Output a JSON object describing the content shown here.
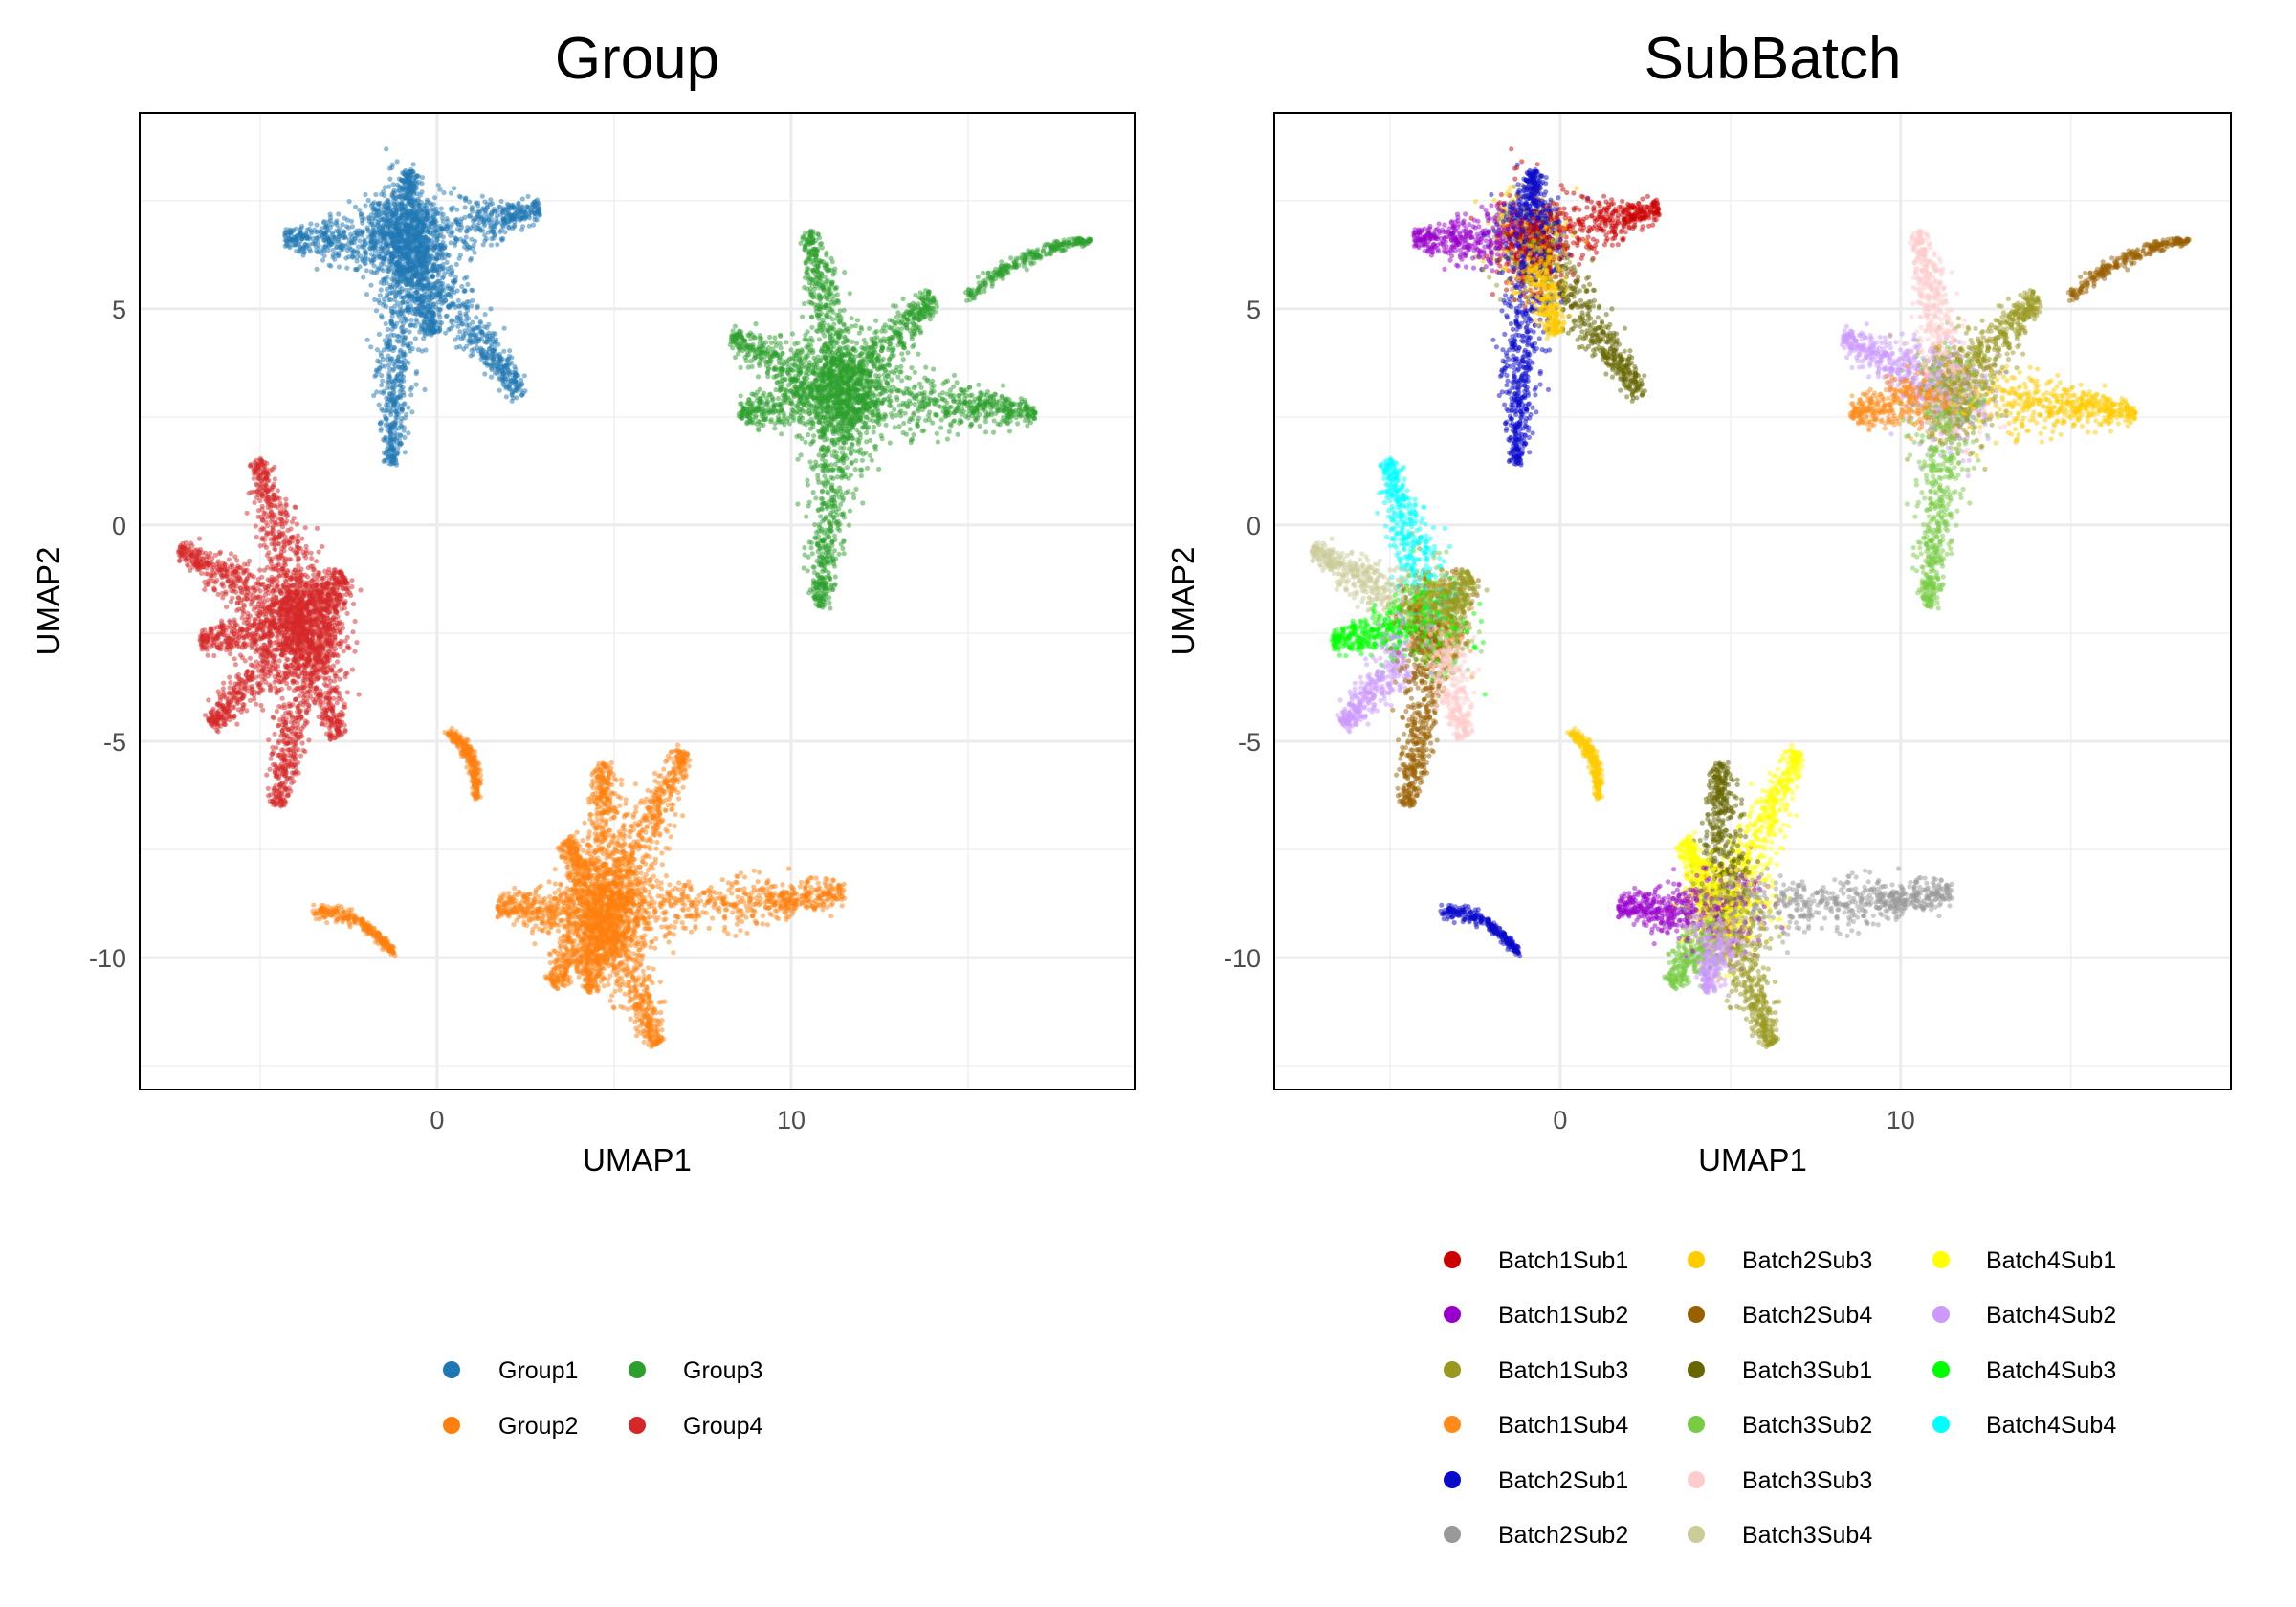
{
  "chart_data": [
    {
      "type": "scatter",
      "title": "Group",
      "xlabel": "UMAP1",
      "ylabel": "UMAP2",
      "color_by": "group",
      "xlim": [
        -8.4,
        19.7
      ],
      "ylim": [
        -13.05,
        9.53
      ],
      "xticks": [
        0,
        10
      ],
      "yticks": [
        -10,
        -5,
        0,
        5
      ],
      "grid": true,
      "legend_position": "bottom",
      "legend": [
        {
          "label": "Group1",
          "color": "#1f77b4"
        },
        {
          "label": "Group2",
          "color": "#ff7f0e"
        },
        {
          "label": "Group3",
          "color": "#2ca02c"
        },
        {
          "label": "Group4",
          "color": "#d62728"
        }
      ]
    },
    {
      "type": "scatter",
      "title": "SubBatch",
      "xlabel": "UMAP1",
      "ylabel": "UMAP2",
      "color_by": "subbatch",
      "xlim": [
        -8.4,
        19.7
      ],
      "ylim": [
        -13.05,
        9.53
      ],
      "xticks": [
        0,
        10
      ],
      "yticks": [
        -10,
        -5,
        0,
        5
      ],
      "grid": true,
      "legend_position": "bottom",
      "legend": [
        {
          "label": "Batch1Sub1",
          "color": "#cc0000"
        },
        {
          "label": "Batch1Sub2",
          "color": "#9900cc"
        },
        {
          "label": "Batch1Sub3",
          "color": "#999922"
        },
        {
          "label": "Batch1Sub4",
          "color": "#ff8c1a"
        },
        {
          "label": "Batch2Sub1",
          "color": "#0a0acc"
        },
        {
          "label": "Batch2Sub2",
          "color": "#999999"
        },
        {
          "label": "Batch2Sub3",
          "color": "#ffcc00"
        },
        {
          "label": "Batch2Sub4",
          "color": "#996000"
        },
        {
          "label": "Batch3Sub1",
          "color": "#666600"
        },
        {
          "label": "Batch3Sub2",
          "color": "#77cc44"
        },
        {
          "label": "Batch3Sub3",
          "color": "#ffcccc"
        },
        {
          "label": "Batch3Sub4",
          "color": "#cccc99"
        },
        {
          "label": "Batch4Sub1",
          "color": "#ffff00"
        },
        {
          "label": "Batch4Sub2",
          "color": "#cc99ff"
        },
        {
          "label": "Batch4Sub3",
          "color": "#00ff00"
        },
        {
          "label": "Batch4Sub4",
          "color": "#00ffff"
        }
      ]
    }
  ],
  "clusters": [
    {
      "group": "Group1",
      "center": [
        -0.9,
        6.6
      ],
      "core": [
        "Batch1Sub1",
        "Batch1Sub3",
        "Batch2Sub3",
        "Batch2Sub1",
        "Batch1Sub1"
      ],
      "arms": [
        {
          "to": [
            -4.3,
            6.6
          ],
          "subbatch": "Batch1Sub2"
        },
        {
          "to": [
            2.9,
            7.3
          ],
          "subbatch": "Batch1Sub1"
        },
        {
          "to": [
            2.4,
            3.0
          ],
          "subbatch": "Batch3Sub1"
        },
        {
          "to": [
            -1.3,
            1.4
          ],
          "subbatch": "Batch2Sub1"
        },
        {
          "to": [
            -0.8,
            8.2
          ],
          "subbatch": "Batch2Sub1"
        },
        {
          "to": [
            -0.1,
            4.4
          ],
          "subbatch": "Batch2Sub3"
        }
      ]
    },
    {
      "group": "Group3",
      "center": [
        11.5,
        3.0
      ],
      "core": [
        "Batch1Sub3",
        "Batch3Sub2",
        "Batch4Sub2",
        "Batch3Sub3",
        "Batch1Sub3"
      ],
      "arms": [
        {
          "to": [
            10.5,
            6.8
          ],
          "subbatch": "Batch3Sub3"
        },
        {
          "to": [
            8.3,
            4.4
          ],
          "subbatch": "Batch4Sub2"
        },
        {
          "to": [
            8.5,
            2.6
          ],
          "subbatch": "Batch1Sub4"
        },
        {
          "to": [
            10.8,
            -1.9
          ],
          "subbatch": "Batch3Sub2"
        },
        {
          "to": [
            16.9,
            2.6
          ],
          "subbatch": "Batch2Sub3"
        },
        {
          "to": [
            14.0,
            5.3
          ],
          "subbatch": "Batch1Sub3"
        }
      ]
    },
    {
      "group": "Group3",
      "arc": [
        [
          15.0,
          5.3
        ],
        [
          18.5,
          6.6
        ]
      ],
      "subbatch": "Batch2Sub4"
    },
    {
      "group": "Group4",
      "center": [
        -3.7,
        -2.2
      ],
      "core": [
        "Batch1Sub3",
        "Batch3Sub2",
        "Batch4Sub3",
        "Batch1Sub4",
        "Batch2Sub4"
      ],
      "arms": [
        {
          "to": [
            -5.1,
            1.5
          ],
          "subbatch": "Batch4Sub4"
        },
        {
          "to": [
            -7.3,
            -0.6
          ],
          "subbatch": "Batch3Sub4"
        },
        {
          "to": [
            -6.7,
            -2.7
          ],
          "subbatch": "Batch4Sub3"
        },
        {
          "to": [
            -6.4,
            -4.6
          ],
          "subbatch": "Batch4Sub2"
        },
        {
          "to": [
            -4.5,
            -6.5
          ],
          "subbatch": "Batch2Sub4"
        },
        {
          "to": [
            -2.8,
            -4.9
          ],
          "subbatch": "Batch3Sub3"
        },
        {
          "to": [
            -2.6,
            -1.2
          ],
          "subbatch": "Batch1Sub3"
        }
      ]
    },
    {
      "group": "Group2",
      "center": [
        4.8,
        -9.0
      ],
      "core": [
        "Batch4Sub1",
        "Batch4Sub1",
        "Batch1Sub3",
        "Batch2Sub2",
        "Batch1Sub2"
      ],
      "arms": [
        {
          "to": [
            7.0,
            -5.2
          ],
          "subbatch": "Batch4Sub1"
        },
        {
          "to": [
            4.7,
            -5.5
          ],
          "subbatch": "Batch3Sub1"
        },
        {
          "to": [
            11.6,
            -8.5
          ],
          "subbatch": "Batch2Sub2"
        },
        {
          "to": [
            3.6,
            -7.3
          ],
          "subbatch": "Batch4Sub1"
        },
        {
          "to": [
            6.2,
            -12.0
          ],
          "subbatch": "Batch1Sub3"
        },
        {
          "to": [
            3.2,
            -10.6
          ],
          "subbatch": "Batch3Sub2"
        },
        {
          "to": [
            1.7,
            -8.8
          ],
          "subbatch": "Batch1Sub2"
        },
        {
          "to": [
            4.3,
            -10.8
          ],
          "subbatch": "Batch4Sub2"
        }
      ]
    },
    {
      "group": "Group2",
      "arc": [
        [
          0.4,
          -4.8
        ],
        [
          1.1,
          -6.3
        ]
      ],
      "subbatch": "Batch2Sub3"
    },
    {
      "group": "Group2",
      "arc": [
        [
          -3.5,
          -8.9
        ],
        [
          -1.2,
          -9.9
        ]
      ],
      "subbatch": "Batch2Sub1"
    }
  ]
}
